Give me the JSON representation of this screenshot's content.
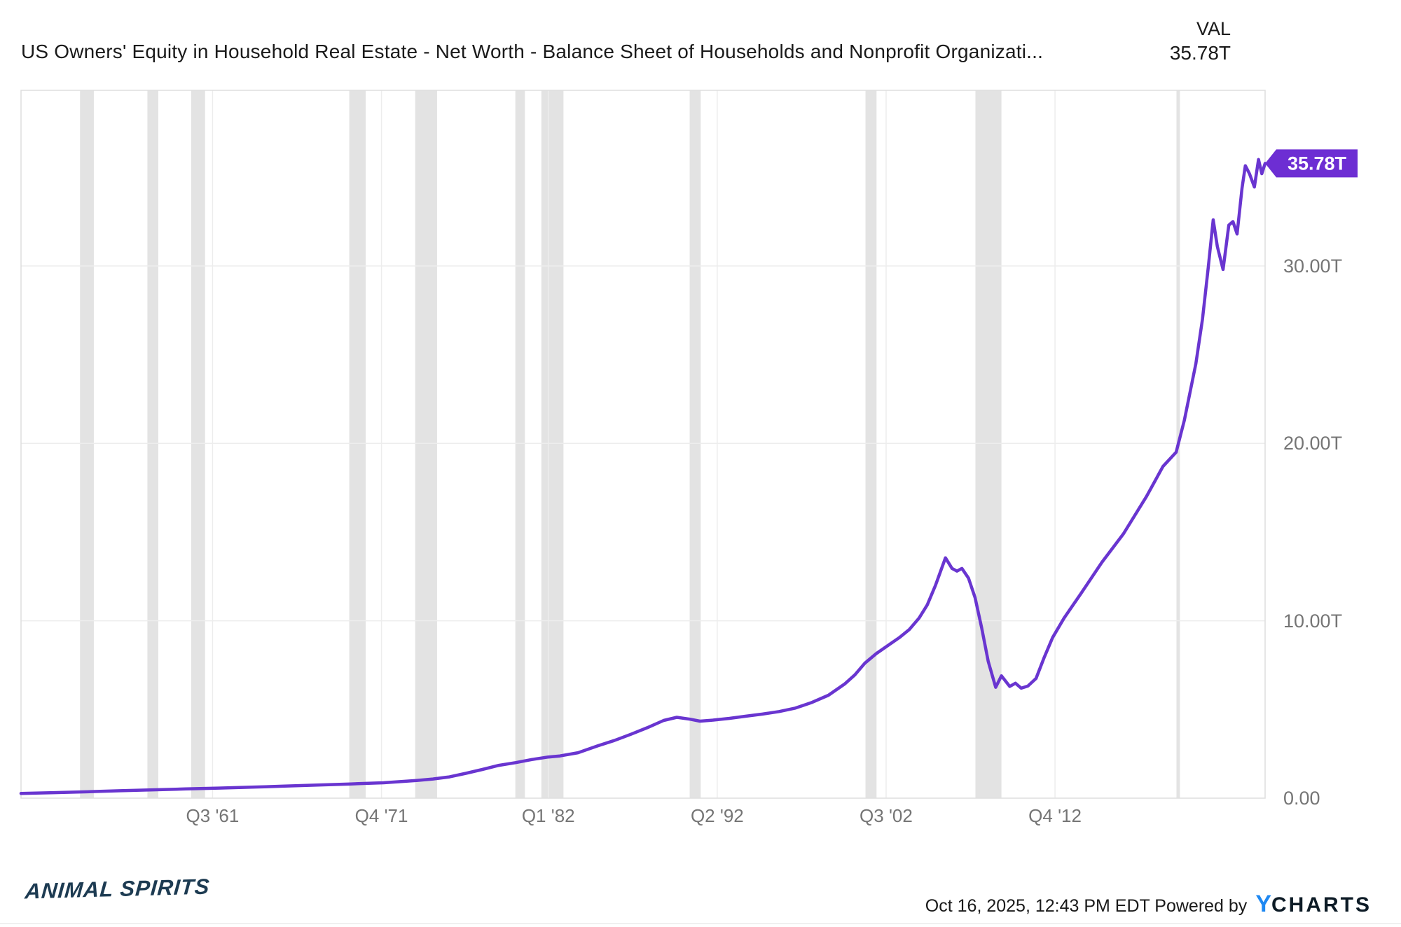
{
  "header": {
    "title": "US Owners' Equity in Household Real Estate - Net Worth - Balance Sheet of Households and Nonprofit Organizati...",
    "value_column_label": "VAL",
    "latest_value": "35.78T"
  },
  "footer": {
    "brand": "ANIMAL SPIRITS",
    "timestamp_and_attribution": "Oct 16, 2025, 12:43 PM EDT Powered by",
    "logo_y": "Y",
    "logo_charts": "CHARTS"
  },
  "chart_data": {
    "type": "line",
    "title": "US Owners' Equity in Household Real Estate - Net Worth - Balance Sheet of Households and Nonprofit Organizations",
    "unit": "trillions of USD",
    "xlabel": "",
    "ylabel": "",
    "xlim": [
      1950,
      2025.5
    ],
    "ylim": [
      0,
      39.9
    ],
    "grid": true,
    "legend_position": "none",
    "latest": {
      "label": "35.78T",
      "value": 35.78,
      "as_of": "Oct 16, 2025, 12:43 PM EDT"
    },
    "x_ticks": [
      {
        "label": "Q3 '61",
        "year": 1961.625
      },
      {
        "label": "Q4 '71",
        "year": 1971.875
      },
      {
        "label": "Q1 '82",
        "year": 1982.0
      },
      {
        "label": "Q2 '92",
        "year": 1992.25
      },
      {
        "label": "Q3 '02",
        "year": 2002.5
      },
      {
        "label": "Q4 '12",
        "year": 2012.75
      }
    ],
    "y_ticks": [
      {
        "label": "0.00",
        "value": 0
      },
      {
        "label": "10.00T",
        "value": 10
      },
      {
        "label": "20.00T",
        "value": 20
      },
      {
        "label": "30.00T",
        "value": 30
      }
    ],
    "recession_bands": [
      [
        1953.58,
        1954.42
      ],
      [
        1957.67,
        1958.33
      ],
      [
        1960.33,
        1961.17
      ],
      [
        1969.92,
        1970.92
      ],
      [
        1973.92,
        1975.25
      ],
      [
        1980.0,
        1980.58
      ],
      [
        1981.58,
        1982.92
      ],
      [
        1990.58,
        1991.25
      ],
      [
        2001.25,
        2001.92
      ],
      [
        2007.92,
        2009.5
      ],
      [
        2020.12,
        2020.33
      ]
    ],
    "series": [
      {
        "name": "US Owners' Equity in Household Real Estate",
        "color": "#6935d0",
        "points": [
          [
            1950,
            0.27
          ],
          [
            1952,
            0.31
          ],
          [
            1954,
            0.36
          ],
          [
            1956,
            0.42
          ],
          [
            1958,
            0.47
          ],
          [
            1960,
            0.52
          ],
          [
            1962,
            0.57
          ],
          [
            1964,
            0.62
          ],
          [
            1966,
            0.68
          ],
          [
            1968,
            0.74
          ],
          [
            1970,
            0.8
          ],
          [
            1972,
            0.87
          ],
          [
            1973,
            0.93
          ],
          [
            1974,
            1.0
          ],
          [
            1975,
            1.08
          ],
          [
            1976,
            1.2
          ],
          [
            1977,
            1.4
          ],
          [
            1978,
            1.62
          ],
          [
            1979,
            1.85
          ],
          [
            1980,
            2.0
          ],
          [
            1981,
            2.18
          ],
          [
            1982,
            2.32
          ],
          [
            1982.7,
            2.38
          ],
          [
            1983.8,
            2.56
          ],
          [
            1985,
            2.95
          ],
          [
            1986,
            3.25
          ],
          [
            1987,
            3.6
          ],
          [
            1988,
            3.97
          ],
          [
            1989,
            4.38
          ],
          [
            1989.8,
            4.56
          ],
          [
            1990.6,
            4.45
          ],
          [
            1991.2,
            4.34
          ],
          [
            1992,
            4.4
          ],
          [
            1993,
            4.5
          ],
          [
            1994,
            4.62
          ],
          [
            1995,
            4.74
          ],
          [
            1996,
            4.88
          ],
          [
            1997,
            5.08
          ],
          [
            1998,
            5.4
          ],
          [
            1999,
            5.8
          ],
          [
            2000,
            6.45
          ],
          [
            2000.6,
            6.95
          ],
          [
            2001.2,
            7.6
          ],
          [
            2001.9,
            8.15
          ],
          [
            2002.6,
            8.6
          ],
          [
            2003.3,
            9.05
          ],
          [
            2003.9,
            9.5
          ],
          [
            2004.5,
            10.15
          ],
          [
            2005,
            10.9
          ],
          [
            2005.5,
            12.0
          ],
          [
            2006.1,
            13.55
          ],
          [
            2006.5,
            12.95
          ],
          [
            2006.8,
            12.8
          ],
          [
            2007.1,
            12.95
          ],
          [
            2007.5,
            12.4
          ],
          [
            2007.9,
            11.3
          ],
          [
            2008.3,
            9.6
          ],
          [
            2008.7,
            7.7
          ],
          [
            2009.15,
            6.25
          ],
          [
            2009.5,
            6.9
          ],
          [
            2010,
            6.3
          ],
          [
            2010.35,
            6.48
          ],
          [
            2010.7,
            6.2
          ],
          [
            2011.1,
            6.32
          ],
          [
            2011.6,
            6.75
          ],
          [
            2012.1,
            7.95
          ],
          [
            2012.6,
            9.05
          ],
          [
            2013.3,
            10.15
          ],
          [
            2014.3,
            11.5
          ],
          [
            2015.6,
            13.3
          ],
          [
            2016.9,
            14.9
          ],
          [
            2018.3,
            17.0
          ],
          [
            2019.3,
            18.7
          ],
          [
            2020.1,
            19.5
          ],
          [
            2020.6,
            21.3
          ],
          [
            2021.3,
            24.5
          ],
          [
            2021.7,
            27.0
          ],
          [
            2022.05,
            29.9
          ],
          [
            2022.35,
            32.6
          ],
          [
            2022.6,
            31.1
          ],
          [
            2022.95,
            29.8
          ],
          [
            2023.3,
            32.3
          ],
          [
            2023.55,
            32.5
          ],
          [
            2023.8,
            31.8
          ],
          [
            2024.1,
            34.4
          ],
          [
            2024.3,
            35.65
          ],
          [
            2024.55,
            35.2
          ],
          [
            2024.85,
            34.45
          ],
          [
            2025.1,
            36.0
          ],
          [
            2025.3,
            35.2
          ],
          [
            2025.5,
            35.78
          ]
        ]
      }
    ],
    "colors": {
      "line": "#6935d0",
      "badge_background": "#6d2ed3",
      "badge_text": "#ffffff",
      "recession_band": "#e3e3e3",
      "gridline": "#ededed",
      "plot_border": "#dedede",
      "axis_text": "#757575",
      "title_text": "#1a1a1a",
      "brand_text": "#1d3b52",
      "ycharts_blue": "#1e88f2",
      "ycharts_dark": "#0d1b26"
    }
  }
}
